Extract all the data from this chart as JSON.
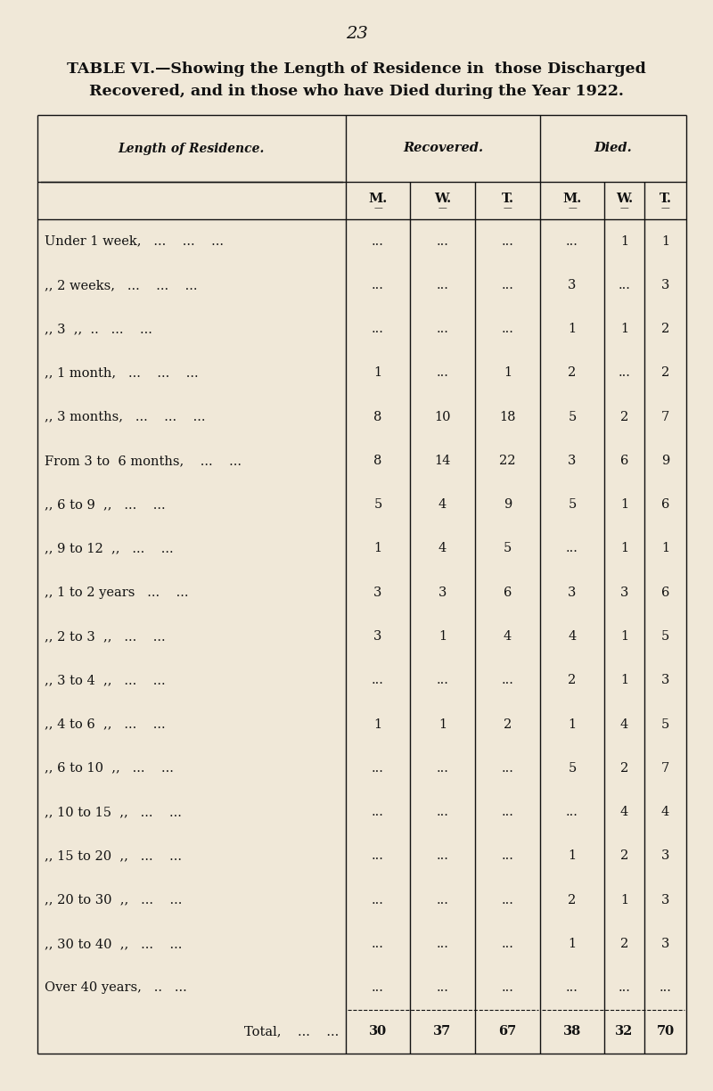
{
  "page_number": "23",
  "title_line1": "TABLE VI.—Showing the Length of Residence in  those Discharged",
  "title_line2": "Recovered, and in those who have Died during the Year 1922.",
  "background_color": "#f0e8d8",
  "text_color": "#111111",
  "col_header1": "Length of Residence.",
  "col_header2": "Recovered.",
  "col_header3": "Died.",
  "sub_headers": [
    "M.",
    "W.",
    "T.",
    "M.",
    "W.",
    "T."
  ],
  "rows": [
    [
      "Under 1 week,   ...    ...    ...",
      "...",
      "...",
      "...",
      "...",
      "1",
      "1"
    ],
    [
      ",, 2 weeks,   ...    ...    ...",
      "...",
      "...",
      "...",
      "3",
      "...",
      "3"
    ],
    [
      ",, 3  ,,  ..   ...    ...",
      "...",
      "...",
      "...",
      "1",
      "1",
      "2"
    ],
    [
      ",, 1 month,   ...    ...    ...",
      "1",
      "...",
      "1",
      "2",
      "...",
      "2"
    ],
    [
      ",, 3 months,   ...    ...    ...",
      "8",
      "10",
      "18",
      "5",
      "2",
      "7"
    ],
    [
      "From 3 to  6 months,    ...    ...",
      "8",
      "14",
      "22",
      "3",
      "6",
      "9"
    ],
    [
      ",, 6 to 9  ,,   ...    ...",
      "5",
      "4",
      "9",
      "5",
      "1",
      "6"
    ],
    [
      ",, 9 to 12  ,,   ...    ...",
      "1",
      "4",
      "5",
      "...",
      "1",
      "1"
    ],
    [
      ",, 1 to 2 years   ...    ...",
      "3",
      "3",
      "6",
      "3",
      "3",
      "6"
    ],
    [
      ",, 2 to 3  ,,   ...    ...",
      "3",
      "1",
      "4",
      "4",
      "1",
      "5"
    ],
    [
      ",, 3 to 4  ,,   ...    ...",
      "...",
      "...",
      "...",
      "2",
      "1",
      "3"
    ],
    [
      ",, 4 to 6  ,,   ...    ...",
      "1",
      "1",
      "2",
      "1",
      "4",
      "5"
    ],
    [
      ",, 6 to 10  ,,   ...    ...",
      "...",
      "...",
      "...",
      "5",
      "2",
      "7"
    ],
    [
      ",, 10 to 15  ,,   ...    ...",
      "...",
      "...",
      "...",
      "...",
      "4",
      "4"
    ],
    [
      ",, 15 to 20  ,,   ...    ...",
      "...",
      "...",
      "...",
      "1",
      "2",
      "3"
    ],
    [
      ",, 20 to 30  ,,   ...    ...",
      "...",
      "...",
      "...",
      "2",
      "1",
      "3"
    ],
    [
      ",, 30 to 40  ,,   ...    ...",
      "...",
      "...",
      "...",
      "1",
      "2",
      "3"
    ],
    [
      "Over 40 years,   ..   ...",
      "...",
      "...",
      "...",
      "...",
      "...",
      "..."
    ],
    [
      "Total,    ...    ...",
      "30",
      "37",
      "67",
      "38",
      "32",
      "70"
    ]
  ]
}
